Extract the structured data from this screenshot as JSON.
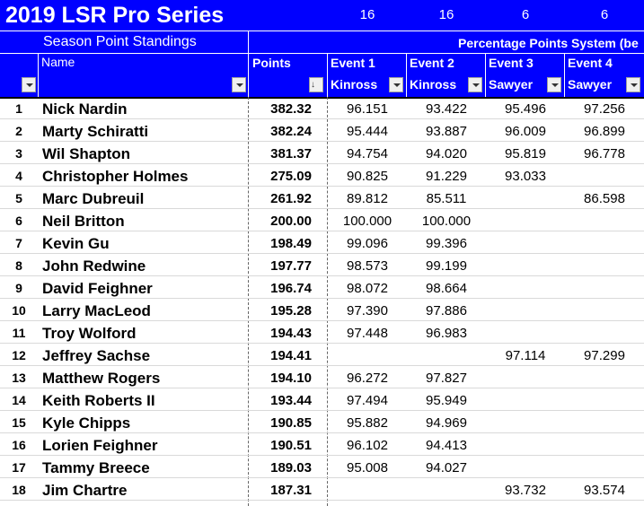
{
  "sheet": {
    "title": "2019 LSR Pro Series",
    "subtitle": "Season Point Standings",
    "system_label": "Percentage Points System (be",
    "event_counts": [
      "16",
      "16",
      "6",
      "6"
    ],
    "columns": {
      "name": "Name",
      "points": "Points",
      "events": [
        {
          "label": "Event 1",
          "location": "Kinross"
        },
        {
          "label": "Event 2",
          "location": "Kinross"
        },
        {
          "label": "Event 3",
          "location": "Sawyer"
        },
        {
          "label": "Event 4",
          "location": "Sawyer"
        }
      ]
    },
    "sort_indicator": "↓",
    "rows": [
      {
        "rank": "1",
        "name": "Nick Nardin",
        "points": "382.32",
        "e": [
          "96.151",
          "93.422",
          "95.496",
          "97.256"
        ]
      },
      {
        "rank": "2",
        "name": "Marty Schiratti",
        "points": "382.24",
        "e": [
          "95.444",
          "93.887",
          "96.009",
          "96.899"
        ]
      },
      {
        "rank": "3",
        "name": "Wil Shapton",
        "points": "381.37",
        "e": [
          "94.754",
          "94.020",
          "95.819",
          "96.778"
        ]
      },
      {
        "rank": "4",
        "name": "Christopher Holmes",
        "points": "275.09",
        "e": [
          "90.825",
          "91.229",
          "93.033",
          ""
        ]
      },
      {
        "rank": "5",
        "name": "Marc Dubreuil",
        "points": "261.92",
        "e": [
          "89.812",
          "85.511",
          "",
          "86.598"
        ]
      },
      {
        "rank": "6",
        "name": "Neil Britton",
        "points": "200.00",
        "e": [
          "100.000",
          "100.000",
          "",
          ""
        ]
      },
      {
        "rank": "7",
        "name": "Kevin Gu",
        "points": "198.49",
        "e": [
          "99.096",
          "99.396",
          "",
          ""
        ]
      },
      {
        "rank": "8",
        "name": "John Redwine",
        "points": "197.77",
        "e": [
          "98.573",
          "99.199",
          "",
          ""
        ]
      },
      {
        "rank": "9",
        "name": "David Feighner",
        "points": "196.74",
        "e": [
          "98.072",
          "98.664",
          "",
          ""
        ]
      },
      {
        "rank": "10",
        "name": "Larry MacLeod",
        "points": "195.28",
        "e": [
          "97.390",
          "97.886",
          "",
          ""
        ]
      },
      {
        "rank": "11",
        "name": "Troy Wolford",
        "points": "194.43",
        "e": [
          "97.448",
          "96.983",
          "",
          ""
        ]
      },
      {
        "rank": "12",
        "name": "Jeffrey Sachse",
        "points": "194.41",
        "e": [
          "",
          "",
          "97.114",
          "97.299"
        ]
      },
      {
        "rank": "13",
        "name": "Matthew Rogers",
        "points": "194.10",
        "e": [
          "96.272",
          "97.827",
          "",
          ""
        ]
      },
      {
        "rank": "14",
        "name": "Keith Roberts II",
        "points": "193.44",
        "e": [
          "97.494",
          "95.949",
          "",
          ""
        ]
      },
      {
        "rank": "15",
        "name": "Kyle Chipps",
        "points": "190.85",
        "e": [
          "95.882",
          "94.969",
          "",
          ""
        ]
      },
      {
        "rank": "16",
        "name": "Lorien Feighner",
        "points": "190.51",
        "e": [
          "96.102",
          "94.413",
          "",
          ""
        ]
      },
      {
        "rank": "17",
        "name": "Tammy Breece",
        "points": "189.03",
        "e": [
          "95.008",
          "94.027",
          "",
          ""
        ]
      },
      {
        "rank": "18",
        "name": "Jim Chartre",
        "points": "187.31",
        "e": [
          "",
          "",
          "93.732",
          "93.574"
        ]
      }
    ]
  }
}
